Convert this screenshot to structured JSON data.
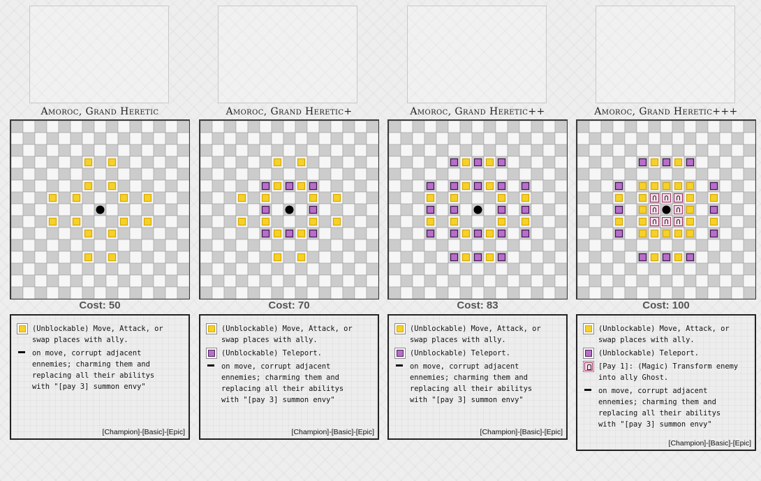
{
  "colors": {
    "move": "#f5d12a",
    "teleport": "#b86fc9",
    "magic": "#f3dde8",
    "dark_cell": "#cccccc",
    "light_cell": "#f6f6f6"
  },
  "cards": [
    {
      "title": "Amoroc, Grand Heretic",
      "cost": "Cost: 50",
      "move": [
        [
          1,
          2
        ],
        [
          -1,
          2
        ],
        [
          1,
          -2
        ],
        [
          -1,
          -2
        ],
        [
          2,
          1
        ],
        [
          -2,
          1
        ],
        [
          2,
          -1
        ],
        [
          -2,
          -1
        ],
        [
          4,
          1
        ],
        [
          -4,
          1
        ],
        [
          4,
          -1
        ],
        [
          -4,
          -1
        ],
        [
          1,
          4
        ],
        [
          -1,
          4
        ],
        [
          1,
          -4
        ],
        [
          -1,
          -4
        ]
      ],
      "teleport": [],
      "magic": [],
      "legend": [
        {
          "icon": "move-square",
          "text": "(Unblockable) Move, Attack, or\nswap places with ally."
        },
        {
          "icon": "dash",
          "text": "on move, corrupt adjacent\nennemies; charming them and\nreplacing all their abilitys\nwith \"[pay 3] summon envy\""
        }
      ],
      "tags": "[Champion]-[Basic]-[Epic]"
    },
    {
      "title": "Amoroc, Grand Heretic+",
      "cost": "Cost: 70",
      "move": [
        [
          1,
          2
        ],
        [
          -1,
          2
        ],
        [
          1,
          -2
        ],
        [
          -1,
          -2
        ],
        [
          2,
          1
        ],
        [
          -2,
          1
        ],
        [
          2,
          -1
        ],
        [
          -2,
          -1
        ],
        [
          4,
          1
        ],
        [
          -4,
          1
        ],
        [
          4,
          -1
        ],
        [
          -4,
          -1
        ],
        [
          1,
          4
        ],
        [
          -1,
          4
        ],
        [
          1,
          -4
        ],
        [
          -1,
          -4
        ]
      ],
      "teleport": [
        [
          2,
          2
        ],
        [
          -2,
          2
        ],
        [
          2,
          -2
        ],
        [
          -2,
          -2
        ],
        [
          0,
          2
        ],
        [
          0,
          -2
        ],
        [
          2,
          0
        ],
        [
          -2,
          0
        ]
      ],
      "magic": [],
      "legend": [
        {
          "icon": "move-square",
          "text": "(Unblockable) Move, Attack, or\nswap places with ally."
        },
        {
          "icon": "teleport-square",
          "text": "(Unblockable) Teleport."
        },
        {
          "icon": "dash",
          "text": "on move, corrupt adjacent\nennemies; charming them and\nreplacing all their abilitys\nwith \"[pay 3] summon envy\""
        }
      ],
      "tags": "[Champion]-[Basic]-[Epic]"
    },
    {
      "title": "Amoroc, Grand Heretic++",
      "cost": "Cost: 83",
      "move": [
        [
          1,
          2
        ],
        [
          -1,
          2
        ],
        [
          1,
          -2
        ],
        [
          -1,
          -2
        ],
        [
          2,
          1
        ],
        [
          -2,
          1
        ],
        [
          2,
          -1
        ],
        [
          -2,
          -1
        ],
        [
          4,
          1
        ],
        [
          -4,
          1
        ],
        [
          4,
          -1
        ],
        [
          -4,
          -1
        ],
        [
          1,
          4
        ],
        [
          -1,
          4
        ],
        [
          1,
          -4
        ],
        [
          -1,
          -4
        ]
      ],
      "teleport": [
        [
          0,
          2
        ],
        [
          0,
          -2
        ],
        [
          2,
          0
        ],
        [
          -2,
          0
        ],
        [
          2,
          2
        ],
        [
          -2,
          2
        ],
        [
          2,
          -2
        ],
        [
          -2,
          -2
        ],
        [
          0,
          4
        ],
        [
          0,
          -4
        ],
        [
          4,
          0
        ],
        [
          -4,
          0
        ],
        [
          2,
          4
        ],
        [
          -2,
          4
        ],
        [
          2,
          -4
        ],
        [
          -2,
          -4
        ],
        [
          4,
          2
        ],
        [
          -4,
          2
        ],
        [
          4,
          -2
        ],
        [
          -4,
          -2
        ]
      ],
      "magic": [],
      "legend": [
        {
          "icon": "move-square",
          "text": "(Unblockable) Move, Attack, or\nswap places with ally."
        },
        {
          "icon": "teleport-square",
          "text": "(Unblockable) Teleport."
        },
        {
          "icon": "dash",
          "text": "on move, corrupt adjacent\nennemies; charming them and\nreplacing all their abilitys\nwith \"[pay 3] summon envy\""
        }
      ],
      "tags": "[Champion]-[Basic]-[Epic]"
    },
    {
      "title": "Amoroc, Grand Heretic+++",
      "cost": "Cost: 100",
      "move": [
        [
          1,
          2
        ],
        [
          -1,
          2
        ],
        [
          1,
          -2
        ],
        [
          -1,
          -2
        ],
        [
          2,
          1
        ],
        [
          -2,
          1
        ],
        [
          2,
          -1
        ],
        [
          -2,
          -1
        ],
        [
          4,
          1
        ],
        [
          -4,
          1
        ],
        [
          4,
          -1
        ],
        [
          -4,
          -1
        ],
        [
          1,
          4
        ],
        [
          -1,
          4
        ],
        [
          1,
          -4
        ],
        [
          -1,
          -4
        ],
        [
          2,
          2
        ],
        [
          -2,
          2
        ],
        [
          2,
          -2
        ],
        [
          -2,
          -2
        ],
        [
          0,
          2
        ],
        [
          0,
          -2
        ],
        [
          2,
          0
        ],
        [
          -2,
          0
        ]
      ],
      "teleport": [
        [
          0,
          4
        ],
        [
          0,
          -4
        ],
        [
          4,
          0
        ],
        [
          -4,
          0
        ],
        [
          2,
          4
        ],
        [
          -2,
          4
        ],
        [
          2,
          -4
        ],
        [
          -2,
          -4
        ],
        [
          4,
          2
        ],
        [
          -4,
          2
        ],
        [
          4,
          -2
        ],
        [
          -4,
          -2
        ]
      ],
      "magic": [
        [
          1,
          1
        ],
        [
          -1,
          1
        ],
        [
          1,
          -1
        ],
        [
          -1,
          -1
        ],
        [
          0,
          1
        ],
        [
          0,
          -1
        ],
        [
          1,
          0
        ],
        [
          -1,
          0
        ]
      ],
      "legend": [
        {
          "icon": "move-square",
          "text": "(Unblockable) Move, Attack, or\nswap places with ally."
        },
        {
          "icon": "teleport-square",
          "text": "(Unblockable) Teleport."
        },
        {
          "icon": "magic-square",
          "text": "[Pay 1]: (Magic) Transform enemy\ninto ally Ghost."
        },
        {
          "icon": "dash",
          "text": "on move, corrupt adjacent\nennemies; charming them and\nreplacing all their abilitys\nwith \"[pay 3] summon envy\""
        }
      ],
      "tags": "[Champion]-[Basic]-[Epic]"
    }
  ]
}
